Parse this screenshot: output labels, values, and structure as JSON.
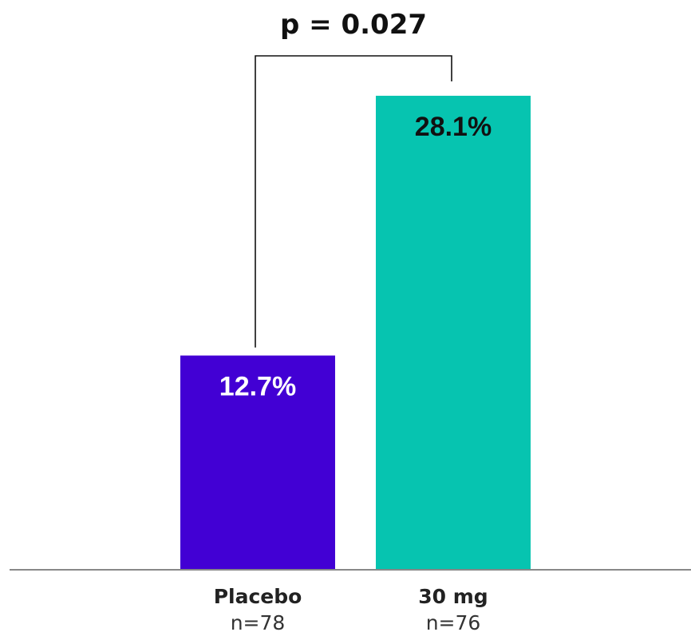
{
  "chart_data": {
    "type": "bar",
    "categories": [
      "Placebo",
      "30 mg"
    ],
    "category_sublabels": [
      "n=78",
      "n=76"
    ],
    "values": [
      12.7,
      28.1
    ],
    "value_labels": [
      "12.7%",
      "28.1%"
    ],
    "bar_colors": [
      "#4200d4",
      "#06c4b0"
    ],
    "value_label_colors": [
      "#ffffff",
      "#111111"
    ],
    "axis_color": "#888888",
    "significance": {
      "between": [
        0,
        1
      ],
      "label": "p = 0.027"
    },
    "ylim": [
      0,
      28.1
    ],
    "grid": false,
    "title": "",
    "xlabel": "",
    "ylabel": ""
  }
}
